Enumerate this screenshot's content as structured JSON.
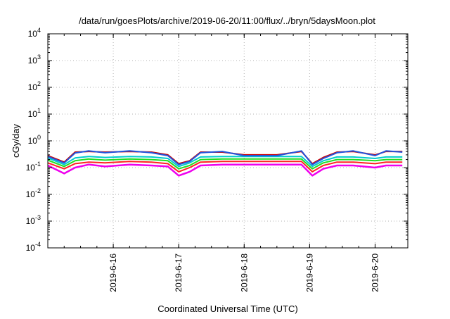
{
  "chart_data": {
    "type": "line",
    "title": "/data/run/goesPlots/archive/2019-06-20/11:00/flux/../bryn/5daysMoon.plot",
    "xlabel": "Coordinated Universal Time (UTC)",
    "ylabel": "cGy/day",
    "yscale": "log",
    "ylim": [
      0.0001,
      10000
    ],
    "xlim": [
      "2019-06-15T00:00",
      "2019-06-20T12:00"
    ],
    "grid": true,
    "y_ticks": [
      {
        "value": 0.0001,
        "base": "10",
        "exp": "-4"
      },
      {
        "value": 0.001,
        "base": "10",
        "exp": "-3"
      },
      {
        "value": 0.01,
        "base": "10",
        "exp": "-2"
      },
      {
        "value": 0.1,
        "base": "10",
        "exp": "-1"
      },
      {
        "value": 1,
        "base": "10",
        "exp": "0"
      },
      {
        "value": 10,
        "base": "10",
        "exp": "1"
      },
      {
        "value": 100,
        "base": "10",
        "exp": "2"
      },
      {
        "value": 1000,
        "base": "10",
        "exp": "3"
      },
      {
        "value": 10000,
        "base": "10",
        "exp": "4"
      }
    ],
    "x_ticks": [
      "2019-6-16",
      "2019-6-17",
      "2019-6-18",
      "2019-6-19",
      "2019-6-20"
    ],
    "x_tick_values": [
      "2019-06-16T00:00",
      "2019-06-17T00:00",
      "2019-06-18T00:00",
      "2019-06-19T00:00",
      "2019-06-20T00:00"
    ],
    "x": [
      "2019-06-15T00:00",
      "2019-06-15T06:00",
      "2019-06-15T10:00",
      "2019-06-15T15:00",
      "2019-06-15T21:00",
      "2019-06-16T06:00",
      "2019-06-16T14:00",
      "2019-06-16T20:00",
      "2019-06-17T00:00",
      "2019-06-17T04:00",
      "2019-06-17T08:00",
      "2019-06-17T16:00",
      "2019-06-18T00:00",
      "2019-06-18T12:00",
      "2019-06-18T21:00",
      "2019-06-19T01:00",
      "2019-06-19T05:00",
      "2019-06-19T10:00",
      "2019-06-19T16:00",
      "2019-06-20T00:00",
      "2019-06-20T04:00",
      "2019-06-20T10:00"
    ],
    "series": [
      {
        "color": "#ee00ee",
        "values": [
          0.12,
          0.06,
          0.1,
          0.13,
          0.11,
          0.13,
          0.12,
          0.11,
          0.05,
          0.07,
          0.12,
          0.13,
          0.13,
          0.13,
          0.13,
          0.05,
          0.09,
          0.12,
          0.12,
          0.1,
          0.12,
          0.12
        ]
      },
      {
        "color": "#ff2222",
        "values": [
          0.15,
          0.09,
          0.14,
          0.16,
          0.15,
          0.17,
          0.16,
          0.14,
          0.07,
          0.1,
          0.16,
          0.17,
          0.17,
          0.17,
          0.17,
          0.07,
          0.12,
          0.16,
          0.16,
          0.14,
          0.16,
          0.16
        ]
      },
      {
        "color": "#22dd22",
        "values": [
          0.19,
          0.11,
          0.18,
          0.21,
          0.19,
          0.21,
          0.2,
          0.18,
          0.09,
          0.12,
          0.2,
          0.21,
          0.21,
          0.21,
          0.21,
          0.09,
          0.15,
          0.2,
          0.2,
          0.18,
          0.2,
          0.2
        ]
      },
      {
        "color": "#00cccc",
        "values": [
          0.23,
          0.13,
          0.23,
          0.26,
          0.24,
          0.26,
          0.25,
          0.22,
          0.11,
          0.15,
          0.25,
          0.26,
          0.26,
          0.26,
          0.26,
          0.11,
          0.18,
          0.25,
          0.25,
          0.22,
          0.25,
          0.25
        ]
      },
      {
        "color": "#cc0000",
        "values": [
          0.28,
          0.16,
          0.38,
          0.4,
          0.38,
          0.4,
          0.38,
          0.3,
          0.14,
          0.18,
          0.38,
          0.38,
          0.3,
          0.3,
          0.4,
          0.14,
          0.24,
          0.38,
          0.4,
          0.3,
          0.4,
          0.4
        ]
      },
      {
        "color": "#2255dd",
        "values": [
          0.26,
          0.15,
          0.35,
          0.42,
          0.36,
          0.42,
          0.36,
          0.28,
          0.13,
          0.17,
          0.36,
          0.4,
          0.28,
          0.28,
          0.42,
          0.13,
          0.22,
          0.36,
          0.42,
          0.28,
          0.42,
          0.38
        ]
      }
    ]
  }
}
